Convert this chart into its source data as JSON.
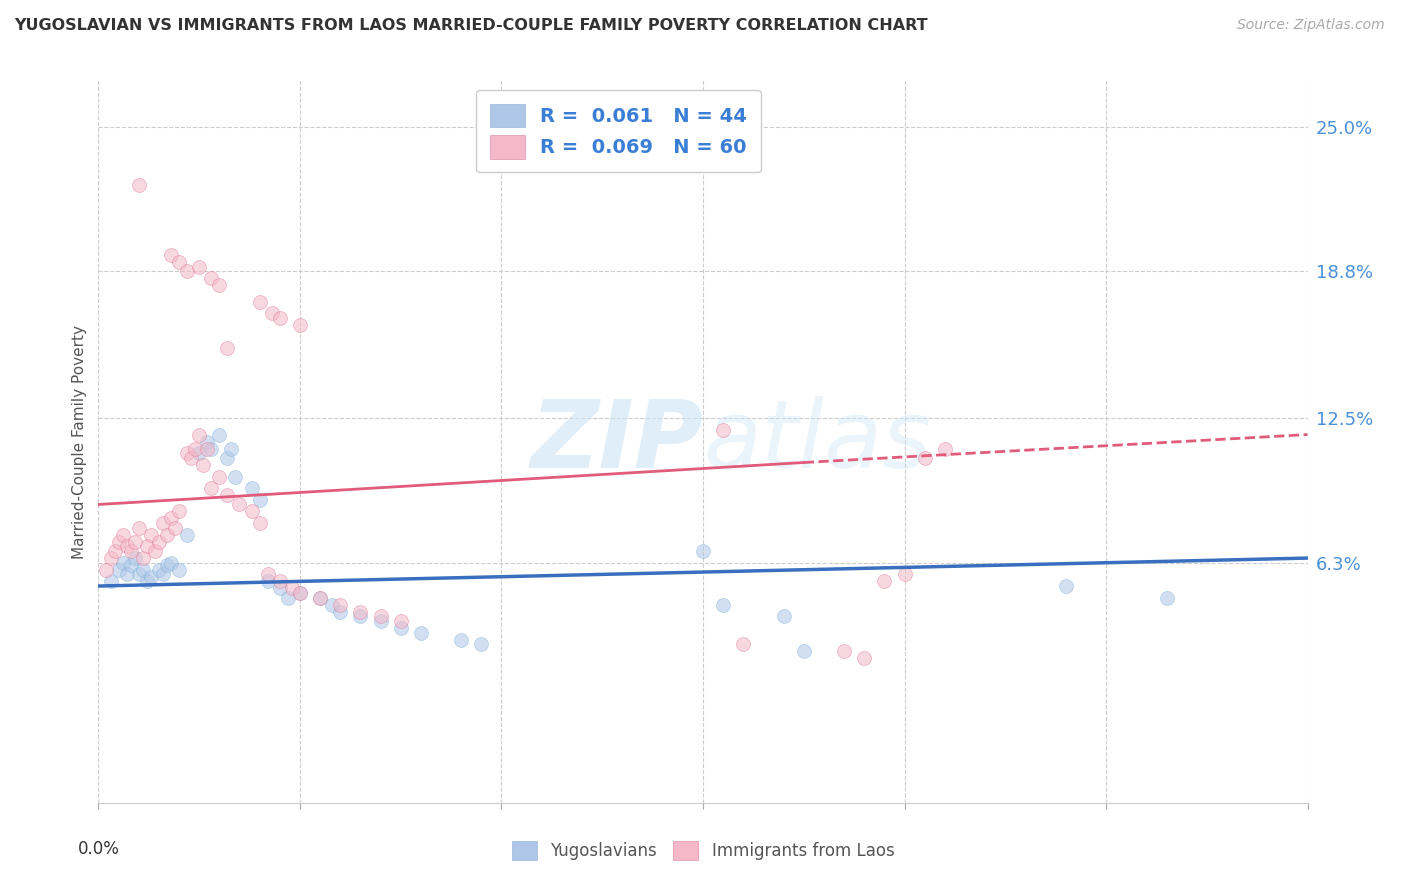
{
  "title": "YUGOSLAVIAN VS IMMIGRANTS FROM LAOS MARRIED-COUPLE FAMILY POVERTY CORRELATION CHART",
  "source": "Source: ZipAtlas.com",
  "ylabel": "Married-Couple Family Poverty",
  "ytick_labels": [
    "25.0%",
    "18.8%",
    "12.5%",
    "6.3%"
  ],
  "ytick_values": [
    0.25,
    0.188,
    0.125,
    0.063
  ],
  "xlim": [
    0.0,
    0.3
  ],
  "ylim": [
    -0.04,
    0.27
  ],
  "legend_entries": [
    {
      "label": "R =  0.061   N = 44",
      "color": "#aec6e8",
      "line_color": "#3a6fbf"
    },
    {
      "label": "R =  0.069   N = 60",
      "color": "#f4b8c8",
      "line_color": "#e05c7a"
    }
  ],
  "legend_bottom": [
    "Yugoslavians",
    "Immigrants from Laos"
  ],
  "watermark_zip": "ZIP",
  "watermark_atlas": "atlas",
  "blue_scatter": [
    [
      0.003,
      0.055
    ],
    [
      0.005,
      0.06
    ],
    [
      0.006,
      0.063
    ],
    [
      0.007,
      0.058
    ],
    [
      0.008,
      0.062
    ],
    [
      0.009,
      0.065
    ],
    [
      0.01,
      0.058
    ],
    [
      0.011,
      0.06
    ],
    [
      0.012,
      0.055
    ],
    [
      0.013,
      0.057
    ],
    [
      0.015,
      0.06
    ],
    [
      0.016,
      0.058
    ],
    [
      0.017,
      0.062
    ],
    [
      0.018,
      0.063
    ],
    [
      0.02,
      0.06
    ],
    [
      0.022,
      0.075
    ],
    [
      0.025,
      0.11
    ],
    [
      0.027,
      0.115
    ],
    [
      0.028,
      0.112
    ],
    [
      0.03,
      0.118
    ],
    [
      0.032,
      0.108
    ],
    [
      0.033,
      0.112
    ],
    [
      0.034,
      0.1
    ],
    [
      0.038,
      0.095
    ],
    [
      0.04,
      0.09
    ],
    [
      0.042,
      0.055
    ],
    [
      0.045,
      0.052
    ],
    [
      0.047,
      0.048
    ],
    [
      0.05,
      0.05
    ],
    [
      0.055,
      0.048
    ],
    [
      0.058,
      0.045
    ],
    [
      0.06,
      0.042
    ],
    [
      0.065,
      0.04
    ],
    [
      0.07,
      0.038
    ],
    [
      0.075,
      0.035
    ],
    [
      0.08,
      0.033
    ],
    [
      0.09,
      0.03
    ],
    [
      0.095,
      0.028
    ],
    [
      0.15,
      0.068
    ],
    [
      0.155,
      0.045
    ],
    [
      0.17,
      0.04
    ],
    [
      0.175,
      0.025
    ],
    [
      0.24,
      0.053
    ],
    [
      0.265,
      0.048
    ]
  ],
  "pink_scatter": [
    [
      0.002,
      0.06
    ],
    [
      0.003,
      0.065
    ],
    [
      0.004,
      0.068
    ],
    [
      0.005,
      0.072
    ],
    [
      0.006,
      0.075
    ],
    [
      0.007,
      0.07
    ],
    [
      0.008,
      0.068
    ],
    [
      0.009,
      0.072
    ],
    [
      0.01,
      0.078
    ],
    [
      0.011,
      0.065
    ],
    [
      0.012,
      0.07
    ],
    [
      0.013,
      0.075
    ],
    [
      0.014,
      0.068
    ],
    [
      0.015,
      0.072
    ],
    [
      0.016,
      0.08
    ],
    [
      0.017,
      0.075
    ],
    [
      0.018,
      0.082
    ],
    [
      0.019,
      0.078
    ],
    [
      0.02,
      0.085
    ],
    [
      0.022,
      0.11
    ],
    [
      0.023,
      0.108
    ],
    [
      0.024,
      0.112
    ],
    [
      0.025,
      0.118
    ],
    [
      0.026,
      0.105
    ],
    [
      0.027,
      0.112
    ],
    [
      0.028,
      0.095
    ],
    [
      0.03,
      0.1
    ],
    [
      0.032,
      0.092
    ],
    [
      0.035,
      0.088
    ],
    [
      0.038,
      0.085
    ],
    [
      0.04,
      0.08
    ],
    [
      0.042,
      0.058
    ],
    [
      0.045,
      0.055
    ],
    [
      0.048,
      0.052
    ],
    [
      0.05,
      0.05
    ],
    [
      0.055,
      0.048
    ],
    [
      0.06,
      0.045
    ],
    [
      0.065,
      0.042
    ],
    [
      0.07,
      0.04
    ],
    [
      0.075,
      0.038
    ],
    [
      0.01,
      0.225
    ],
    [
      0.018,
      0.195
    ],
    [
      0.02,
      0.192
    ],
    [
      0.022,
      0.188
    ],
    [
      0.025,
      0.19
    ],
    [
      0.028,
      0.185
    ],
    [
      0.03,
      0.182
    ],
    [
      0.04,
      0.175
    ],
    [
      0.043,
      0.17
    ],
    [
      0.045,
      0.168
    ],
    [
      0.05,
      0.165
    ],
    [
      0.032,
      0.155
    ],
    [
      0.155,
      0.12
    ],
    [
      0.16,
      0.028
    ],
    [
      0.185,
      0.025
    ],
    [
      0.19,
      0.022
    ],
    [
      0.195,
      0.055
    ],
    [
      0.2,
      0.058
    ],
    [
      0.205,
      0.108
    ],
    [
      0.21,
      0.112
    ]
  ],
  "blue_line_solid": {
    "x0": 0.0,
    "x1": 0.3,
    "y0": 0.053,
    "y1": 0.065
  },
  "pink_line_solid": {
    "x0": 0.0,
    "x1": 0.175,
    "y0": 0.088,
    "y1": 0.106
  },
  "pink_line_dashed": {
    "x0": 0.175,
    "x1": 0.3,
    "y0": 0.106,
    "y1": 0.118
  },
  "background_color": "#ffffff",
  "grid_color": "#cccccc",
  "scatter_size": 100,
  "scatter_alpha": 0.55
}
